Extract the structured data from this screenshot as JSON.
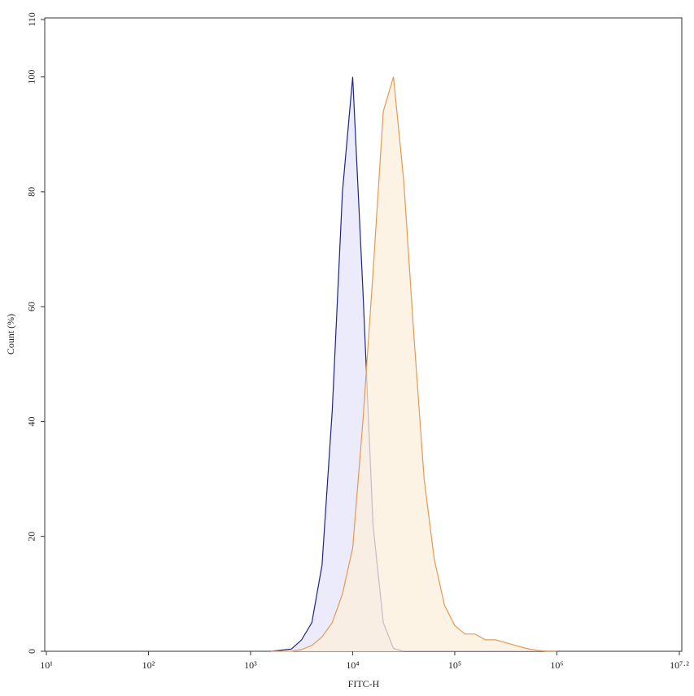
{
  "chart_data": {
    "type": "histogram-overlay",
    "xlabel": "FITC-H",
    "ylabel": "Count (%)",
    "log_x": true,
    "xlim": [
      10,
      15848932
    ],
    "xticks": [
      {
        "value": 10,
        "label": "10¹"
      },
      {
        "value": 100,
        "label": "10²"
      },
      {
        "value": 1000,
        "label": "10³"
      },
      {
        "value": 10000,
        "label": "10⁴"
      },
      {
        "value": 100000,
        "label": "10⁵"
      },
      {
        "value": 1000000,
        "label": "10⁶"
      },
      {
        "value": 15848932,
        "label": "10⁷·²"
      }
    ],
    "ylim": [
      0,
      110
    ],
    "yticks": [
      0,
      20,
      40,
      60,
      80,
      100,
      110
    ],
    "x": [
      1585,
      1995,
      2512,
      3162,
      3981,
      5012,
      6310,
      7943,
      10000,
      12589,
      15849,
      19953,
      25119,
      31623,
      39811,
      50119,
      63096,
      79433,
      100000,
      125893,
      158489,
      199526,
      251189,
      316228,
      398107,
      501187,
      630957,
      794328,
      1000000
    ],
    "series": [
      {
        "color": "#1f2585",
        "fill": "#e4e4fa",
        "values": [
          0,
          0.2,
          0.4,
          2,
          5,
          15,
          42,
          80,
          100,
          63,
          22,
          5,
          0.5,
          0,
          0,
          0,
          0,
          0,
          0,
          0,
          0,
          0,
          0,
          0,
          0,
          0,
          0,
          0,
          0
        ]
      },
      {
        "color": "#e39a55",
        "fill": "#fcefdc",
        "values": [
          0,
          0,
          0,
          0.3,
          1,
          2.5,
          5,
          10,
          18,
          40,
          66,
          94,
          100,
          82,
          55,
          30,
          16,
          8,
          4.5,
          3,
          3,
          2,
          2,
          1.5,
          1,
          0.5,
          0.2,
          0,
          0
        ]
      }
    ]
  }
}
